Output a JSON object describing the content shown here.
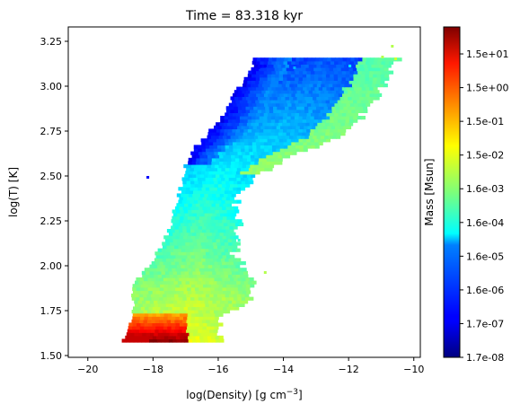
{
  "chart_data": {
    "type": "heatmap",
    "title": "Time = 83.318 kyr",
    "xlabel_base": "log(Density) [g cm",
    "xlabel_exp": "−3",
    "xlabel_end": "]",
    "ylabel": "log(T) [K]",
    "xlim": [
      -20.6,
      -9.8
    ],
    "ylim": [
      1.49,
      3.33
    ],
    "x_ticks": [
      -20,
      -18,
      -16,
      -14,
      -12,
      -10
    ],
    "y_ticks": [
      1.5,
      1.75,
      2.0,
      2.25,
      2.5,
      2.75,
      3.0,
      3.25
    ],
    "x_tick_labels": [
      "−20",
      "−18",
      "−16",
      "−14",
      "−12",
      "−10"
    ],
    "y_tick_labels": [
      "1.50",
      "1.75",
      "2.00",
      "2.25",
      "2.50",
      "2.75",
      "3.00",
      "3.25"
    ],
    "colorbar": {
      "label": "Mass [Msun]",
      "colormap": "jet",
      "scale": "log",
      "ticks": [
        "1.7e-08",
        "1.7e-07",
        "1.6e-06",
        "1.6e-05",
        "1.6e-04",
        "1.6e-03",
        "1.5e-02",
        "1.5e-01",
        "1.5e+00",
        "1.5e+01"
      ],
      "range": [
        1.7e-08,
        30
      ]
    },
    "grid": false
  }
}
